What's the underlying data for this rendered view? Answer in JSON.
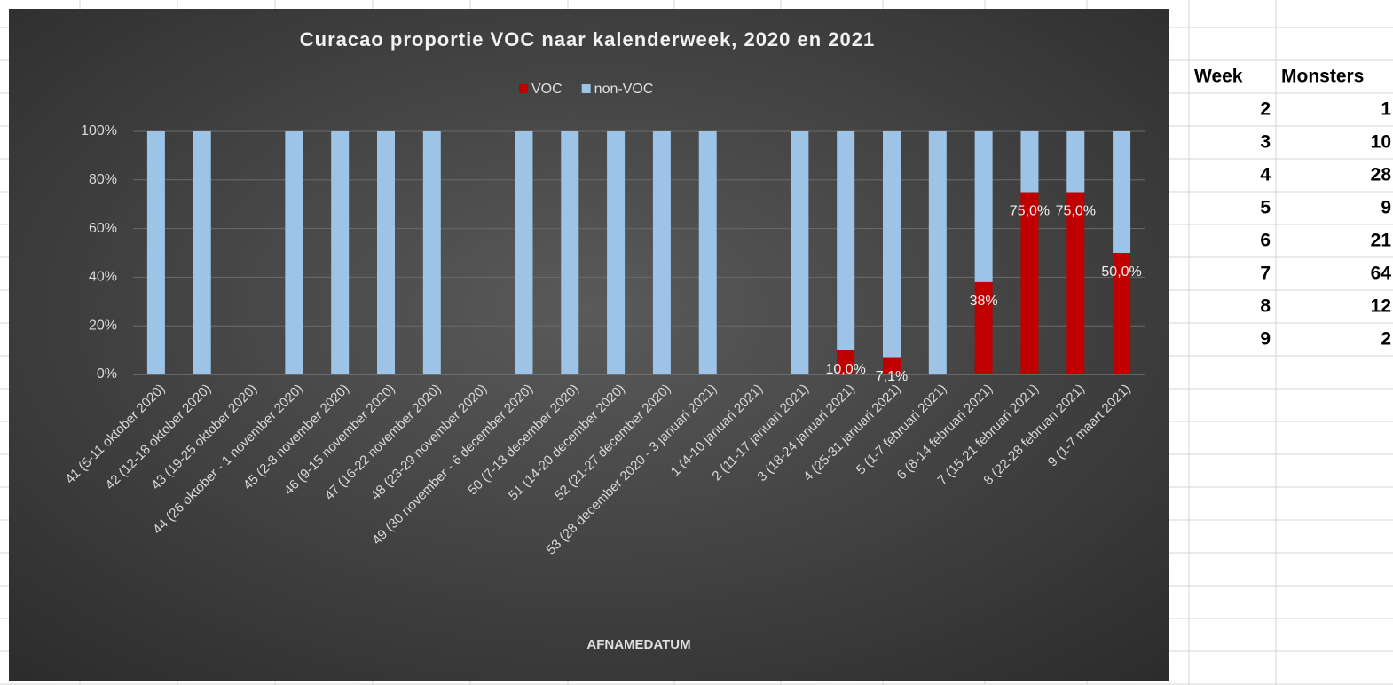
{
  "chart_data": {
    "type": "bar",
    "stacked": true,
    "title": "Curacao proportie VOC naar kalenderweek, 2020 en 2021",
    "x_label": "AFNAMEDATUM",
    "legend": "top",
    "categories": [
      "41 (5-11 oktober 2020)",
      "42 (12-18 oktober 2020)",
      "43 (19-25 oktober 2020)",
      "44 (26 oktober - 1 november 2020)",
      "45 (2-8 november 2020)",
      "46 (9-15 november 2020)",
      "47 (16-22 november 2020)",
      "48 (23-29 november 2020)",
      "49 (30 november - 6 december 2020)",
      "50 (7-13 december 2020)",
      "51 (14-20 december 2020)",
      "52 (21-27 december 2020)",
      "53 (28 december 2020 - 3 januari 2021)",
      "1 (4-10 januari 2021)",
      "2 (11-17 januari 2021)",
      "3 (18-24 januari 2021)",
      "4 (25-31 januari 2021)",
      "5 (1-7 februari 2021)",
      "6 (8-14 februari 2021)",
      "7 (15-21 februari 2021)",
      "8 (22-28 februari 2021)",
      "9 (1-7 maart 2021)"
    ],
    "series": [
      {
        "name": "VOC",
        "color": "#c00000",
        "values": [
          0,
          0,
          null,
          0,
          0,
          0,
          0,
          null,
          0,
          0,
          0,
          0,
          0,
          null,
          0,
          10,
          7.1,
          0,
          38,
          75,
          75,
          50
        ],
        "value_labels": [
          null,
          null,
          null,
          null,
          null,
          null,
          null,
          null,
          null,
          null,
          null,
          null,
          null,
          null,
          null,
          "10,0%",
          "7,1%",
          null,
          "38%",
          "75,0%",
          "75,0%",
          "50,0%"
        ]
      },
      {
        "name": "non-VOC",
        "color": "#9dc3e6",
        "values": [
          100,
          100,
          null,
          100,
          100,
          100,
          100,
          null,
          100,
          100,
          100,
          100,
          100,
          null,
          100,
          90,
          92.9,
          100,
          62,
          25,
          25,
          50
        ]
      }
    ],
    "ylim": [
      0,
      100
    ],
    "yticks": [
      {
        "value": 0,
        "label": "0%"
      },
      {
        "value": 20,
        "label": "20%"
      },
      {
        "value": 40,
        "label": "40%"
      },
      {
        "value": 60,
        "label": "60%"
      },
      {
        "value": 80,
        "label": "80%"
      },
      {
        "value": 100,
        "label": "100%"
      }
    ],
    "grid": true
  },
  "table": {
    "header": [
      "Week",
      "Monsters"
    ],
    "rows": [
      [
        2,
        "1"
      ],
      [
        3,
        "10"
      ],
      [
        4,
        "28"
      ],
      [
        5,
        "9"
      ],
      [
        6,
        "21"
      ],
      [
        7,
        "64"
      ],
      [
        8,
        "12"
      ],
      [
        9,
        "2"
      ]
    ]
  }
}
